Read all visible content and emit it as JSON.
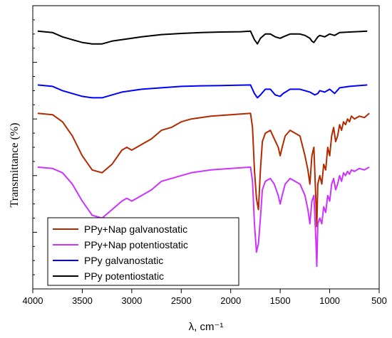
{
  "chart_data": {
    "type": "line",
    "title": "",
    "xlabel": "λ, cm⁻¹",
    "ylabel": "Transmittance (%)",
    "xlim": [
      4000,
      500
    ],
    "x_reversed": true,
    "x_ticks": [
      4000,
      3500,
      3000,
      2500,
      2000,
      1500,
      1000,
      500
    ],
    "y_tick_labels": false,
    "grid": false,
    "legend_position": "bottom-left",
    "legend_order": [
      "PPy+Nap galvanostatic",
      "PPy+Nap potentiostatic",
      "PPy galvanostatic",
      "PPy potentiostatic"
    ],
    "series": [
      {
        "name": "PPy potentiostatic",
        "color": "#000000",
        "offset": 0.91,
        "points": [
          [
            3950,
            0
          ],
          [
            3800,
            -0.005
          ],
          [
            3700,
            -0.02
          ],
          [
            3600,
            -0.03
          ],
          [
            3500,
            -0.04
          ],
          [
            3400,
            -0.045
          ],
          [
            3300,
            -0.045
          ],
          [
            3200,
            -0.035
          ],
          [
            3100,
            -0.03
          ],
          [
            3000,
            -0.025
          ],
          [
            2900,
            -0.02
          ],
          [
            2700,
            -0.012
          ],
          [
            2500,
            -0.008
          ],
          [
            2300,
            -0.005
          ],
          [
            2100,
            -0.003
          ],
          [
            1900,
            -0.002
          ],
          [
            1800,
            0
          ],
          [
            1760,
            -0.03
          ],
          [
            1730,
            -0.045
          ],
          [
            1700,
            -0.025
          ],
          [
            1650,
            -0.01
          ],
          [
            1600,
            -0.01
          ],
          [
            1550,
            -0.02
          ],
          [
            1500,
            -0.025
          ],
          [
            1470,
            -0.02
          ],
          [
            1400,
            -0.01
          ],
          [
            1300,
            -0.01
          ],
          [
            1250,
            -0.015
          ],
          [
            1200,
            -0.025
          ],
          [
            1180,
            -0.035
          ],
          [
            1160,
            -0.04
          ],
          [
            1140,
            -0.03
          ],
          [
            1120,
            -0.02
          ],
          [
            1100,
            -0.015
          ],
          [
            1050,
            -0.02
          ],
          [
            1000,
            -0.01
          ],
          [
            950,
            -0.015
          ],
          [
            900,
            -0.005
          ],
          [
            800,
            -0.003
          ],
          [
            620,
            0
          ]
        ]
      },
      {
        "name": "PPy galvanostatic",
        "color": "#0000ff",
        "offset": 0.72,
        "points": [
          [
            3950,
            0
          ],
          [
            3800,
            -0.005
          ],
          [
            3700,
            -0.02
          ],
          [
            3600,
            -0.03
          ],
          [
            3500,
            -0.04
          ],
          [
            3400,
            -0.045
          ],
          [
            3300,
            -0.045
          ],
          [
            3200,
            -0.035
          ],
          [
            3100,
            -0.025
          ],
          [
            3000,
            -0.02
          ],
          [
            2900,
            -0.015
          ],
          [
            2700,
            -0.01
          ],
          [
            2500,
            -0.005
          ],
          [
            2300,
            -0.003
          ],
          [
            2100,
            -0.002
          ],
          [
            1800,
            0
          ],
          [
            1760,
            -0.03
          ],
          [
            1730,
            -0.045
          ],
          [
            1700,
            -0.035
          ],
          [
            1650,
            -0.015
          ],
          [
            1600,
            -0.015
          ],
          [
            1550,
            -0.035
          ],
          [
            1500,
            -0.04
          ],
          [
            1470,
            -0.03
          ],
          [
            1400,
            -0.015
          ],
          [
            1300,
            -0.015
          ],
          [
            1250,
            -0.02
          ],
          [
            1200,
            -0.025
          ],
          [
            1150,
            -0.035
          ],
          [
            1120,
            -0.03
          ],
          [
            1100,
            -0.02
          ],
          [
            1050,
            -0.025
          ],
          [
            1000,
            -0.015
          ],
          [
            950,
            -0.03
          ],
          [
            900,
            -0.01
          ],
          [
            800,
            -0.005
          ],
          [
            620,
            0
          ]
        ]
      },
      {
        "name": "PPy+Nap galvanostatic",
        "color": "#b22a00",
        "offset": 0.62,
        "points": [
          [
            3950,
            0
          ],
          [
            3800,
            -0.005
          ],
          [
            3700,
            -0.03
          ],
          [
            3600,
            -0.08
          ],
          [
            3500,
            -0.15
          ],
          [
            3400,
            -0.2
          ],
          [
            3300,
            -0.21
          ],
          [
            3200,
            -0.18
          ],
          [
            3100,
            -0.13
          ],
          [
            3050,
            -0.12
          ],
          [
            3000,
            -0.13
          ],
          [
            2900,
            -0.11
          ],
          [
            2800,
            -0.09
          ],
          [
            2700,
            -0.06
          ],
          [
            2600,
            -0.05
          ],
          [
            2500,
            -0.03
          ],
          [
            2400,
            -0.02
          ],
          [
            2300,
            -0.015
          ],
          [
            2200,
            -0.01
          ],
          [
            2000,
            -0.005
          ],
          [
            1800,
            0
          ],
          [
            1780,
            -0.05
          ],
          [
            1760,
            -0.2
          ],
          [
            1740,
            -0.3
          ],
          [
            1720,
            -0.34
          ],
          [
            1700,
            -0.2
          ],
          [
            1680,
            -0.1
          ],
          [
            1650,
            -0.07
          ],
          [
            1600,
            -0.06
          ],
          [
            1560,
            -0.09
          ],
          [
            1520,
            -0.12
          ],
          [
            1500,
            -0.15
          ],
          [
            1480,
            -0.12
          ],
          [
            1450,
            -0.08
          ],
          [
            1400,
            -0.06
          ],
          [
            1350,
            -0.07
          ],
          [
            1300,
            -0.08
          ],
          [
            1250,
            -0.15
          ],
          [
            1220,
            -0.2
          ],
          [
            1200,
            -0.25
          ],
          [
            1180,
            -0.15
          ],
          [
            1160,
            -0.12
          ],
          [
            1140,
            -0.3
          ],
          [
            1130,
            -0.4
          ],
          [
            1120,
            -0.25
          ],
          [
            1100,
            -0.22
          ],
          [
            1080,
            -0.25
          ],
          [
            1060,
            -0.18
          ],
          [
            1040,
            -0.2
          ],
          [
            1020,
            -0.12
          ],
          [
            1000,
            -0.15
          ],
          [
            980,
            -0.08
          ],
          [
            960,
            -0.05
          ],
          [
            940,
            -0.1
          ],
          [
            920,
            -0.08
          ],
          [
            900,
            -0.04
          ],
          [
            880,
            -0.06
          ],
          [
            860,
            -0.03
          ],
          [
            840,
            -0.04
          ],
          [
            820,
            -0.02
          ],
          [
            800,
            -0.03
          ],
          [
            780,
            -0.01
          ],
          [
            750,
            -0.02
          ],
          [
            700,
            -0.01
          ],
          [
            650,
            -0.015
          ],
          [
            600,
            0
          ]
        ]
      },
      {
        "name": "PPy+Nap potentiostatic",
        "color": "#cc33ff",
        "offset": 0.43,
        "points": [
          [
            3950,
            0
          ],
          [
            3800,
            -0.005
          ],
          [
            3700,
            -0.02
          ],
          [
            3600,
            -0.06
          ],
          [
            3500,
            -0.12
          ],
          [
            3400,
            -0.17
          ],
          [
            3300,
            -0.18
          ],
          [
            3200,
            -0.15
          ],
          [
            3100,
            -0.12
          ],
          [
            3050,
            -0.11
          ],
          [
            3000,
            -0.12
          ],
          [
            2900,
            -0.1
          ],
          [
            2800,
            -0.08
          ],
          [
            2700,
            -0.05
          ],
          [
            2600,
            -0.04
          ],
          [
            2500,
            -0.03
          ],
          [
            2400,
            -0.02
          ],
          [
            2300,
            -0.015
          ],
          [
            2200,
            -0.01
          ],
          [
            2000,
            -0.005
          ],
          [
            1800,
            0
          ],
          [
            1780,
            -0.05
          ],
          [
            1760,
            -0.2
          ],
          [
            1740,
            -0.3
          ],
          [
            1720,
            -0.27
          ],
          [
            1700,
            -0.18
          ],
          [
            1680,
            -0.08
          ],
          [
            1650,
            -0.05
          ],
          [
            1600,
            -0.04
          ],
          [
            1560,
            -0.06
          ],
          [
            1520,
            -0.1
          ],
          [
            1500,
            -0.13
          ],
          [
            1480,
            -0.1
          ],
          [
            1450,
            -0.06
          ],
          [
            1400,
            -0.04
          ],
          [
            1350,
            -0.05
          ],
          [
            1300,
            -0.06
          ],
          [
            1250,
            -0.1
          ],
          [
            1220,
            -0.15
          ],
          [
            1200,
            -0.2
          ],
          [
            1180,
            -0.12
          ],
          [
            1160,
            -0.1
          ],
          [
            1140,
            -0.25
          ],
          [
            1130,
            -0.35
          ],
          [
            1120,
            -0.2
          ],
          [
            1100,
            -0.18
          ],
          [
            1080,
            -0.2
          ],
          [
            1060,
            -0.14
          ],
          [
            1040,
            -0.16
          ],
          [
            1020,
            -0.1
          ],
          [
            1000,
            -0.12
          ],
          [
            980,
            -0.06
          ],
          [
            960,
            -0.04
          ],
          [
            940,
            -0.08
          ],
          [
            920,
            -0.06
          ],
          [
            900,
            -0.03
          ],
          [
            880,
            -0.05
          ],
          [
            860,
            -0.02
          ],
          [
            840,
            -0.03
          ],
          [
            820,
            -0.015
          ],
          [
            800,
            -0.025
          ],
          [
            780,
            -0.01
          ],
          [
            750,
            -0.015
          ],
          [
            700,
            -0.005
          ],
          [
            650,
            -0.01
          ],
          [
            600,
            0
          ]
        ]
      }
    ]
  }
}
